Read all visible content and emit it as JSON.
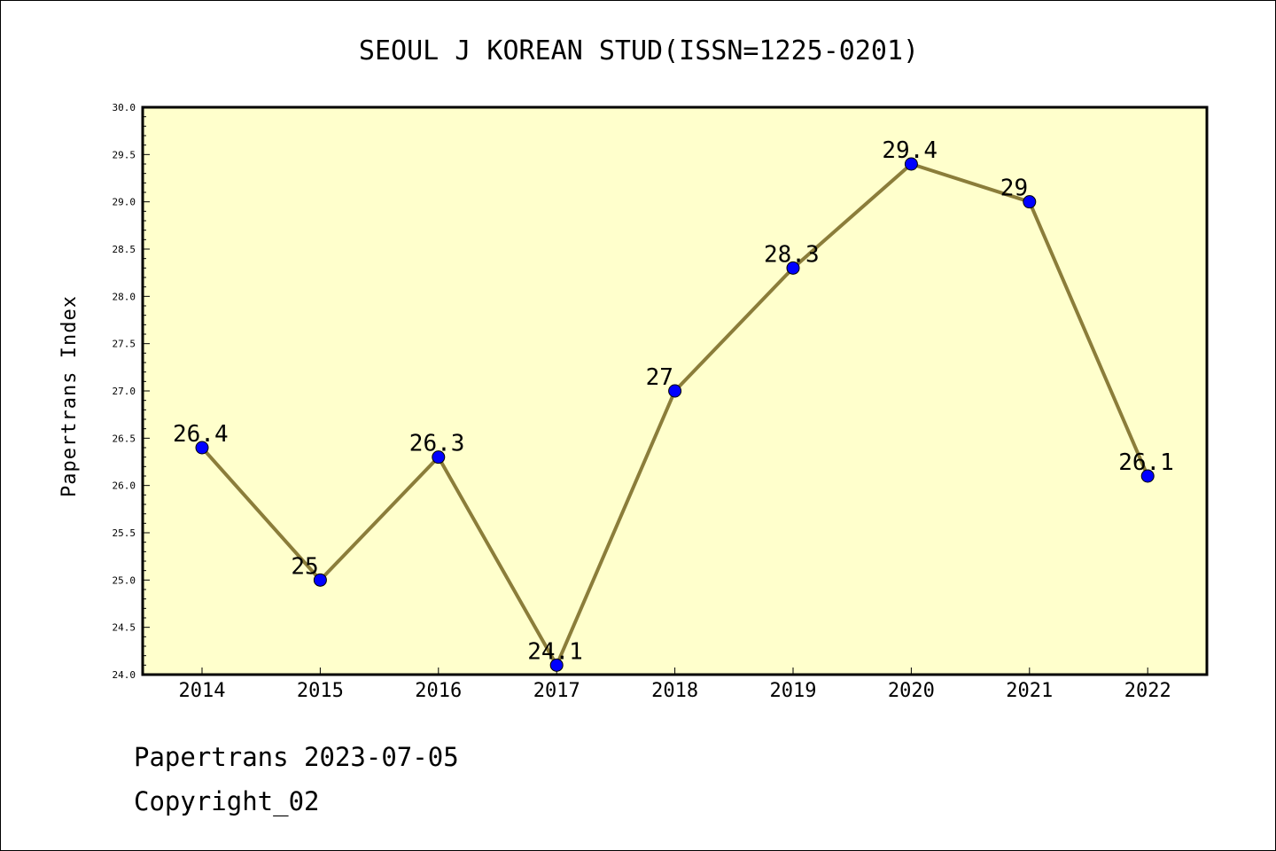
{
  "chart_data": {
    "type": "line",
    "title": "SEOUL J KOREAN STUD(ISSN=1225-0201)",
    "xlabel": "",
    "ylabel": "Papertrans Index",
    "categories": [
      "2014",
      "2015",
      "2016",
      "2017",
      "2018",
      "2019",
      "2020",
      "2021",
      "2022"
    ],
    "values": [
      26.4,
      25,
      26.3,
      24.1,
      27,
      28.3,
      29.4,
      29,
      26.1
    ],
    "data_labels": [
      "26.4",
      "25",
      "26.3",
      "24.1",
      "27",
      "28.3",
      "29.4",
      "29",
      "26.1"
    ],
    "ylim": [
      24.0,
      30.0
    ],
    "yticks": [
      "24.0",
      "24.5",
      "25.0",
      "25.5",
      "26.0",
      "26.5",
      "27.0",
      "27.5",
      "28.0",
      "28.5",
      "29.0",
      "29.5",
      "30.0"
    ],
    "grid": false,
    "legend": "none",
    "colors": {
      "plot_background": "#ffffcc",
      "line": "#8b7d3a",
      "marker": "#0000ff"
    }
  },
  "footer": {
    "line1": "Papertrans 2023-07-05",
    "line2": "Copyright_02"
  }
}
